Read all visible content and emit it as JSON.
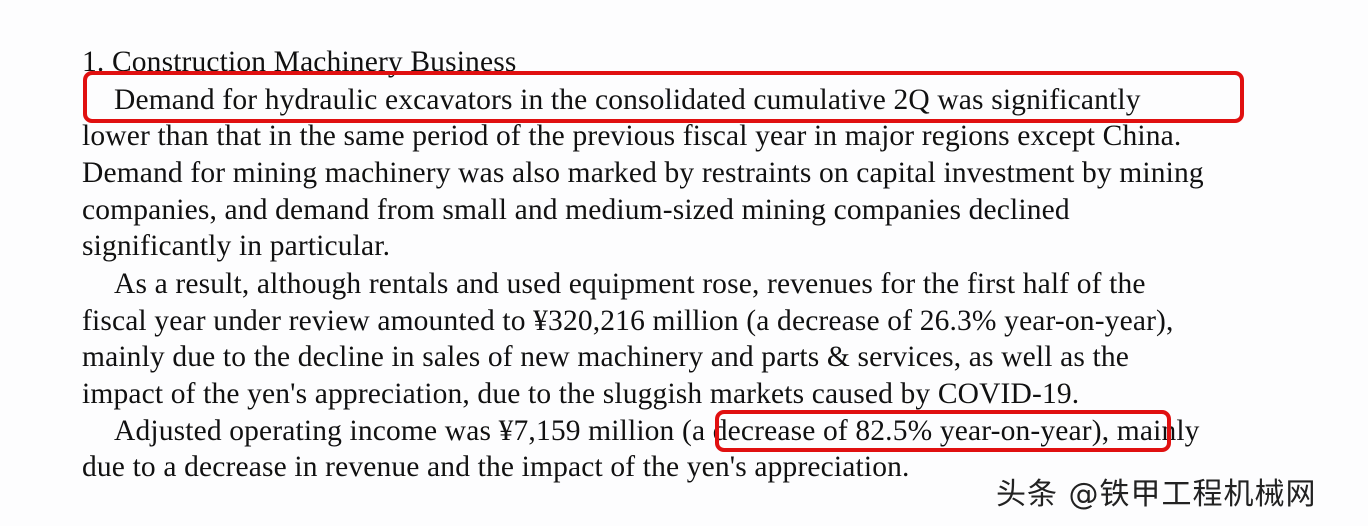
{
  "document": {
    "heading": "1. Construction Machinery Business",
    "lines": [
      "Demand for hydraulic excavators in the consolidated cumulative 2Q was significantly",
      "lower than that in the same period of the previous fiscal year in major regions except China.",
      "Demand for mining machinery was also marked by restraints on capital investment by mining",
      "companies, and demand from small and medium-sized mining companies declined",
      "significantly in particular.",
      "As a result, although rentals and used equipment rose, revenues for the first half of the",
      "fiscal year under review amounted to ¥320,216 million (a decrease of 26.3% year-on-year),",
      "mainly due to the decline in sales of new machinery and parts & services, as well as the",
      "impact of the yen's appreciation, due to the sluggish markets caused by COVID-19."
    ],
    "income_line": {
      "before": "Adjusted operating income was ¥7,159 million ",
      "highlight": "(a decrease of 82.5% year-on-year)",
      "after": ", mainly"
    },
    "last_line": "due to a decrease in revenue and the impact of the yen's appreciation."
  },
  "watermark": "头条 @铁甲工程机械网",
  "highlight_color": "#e01010"
}
